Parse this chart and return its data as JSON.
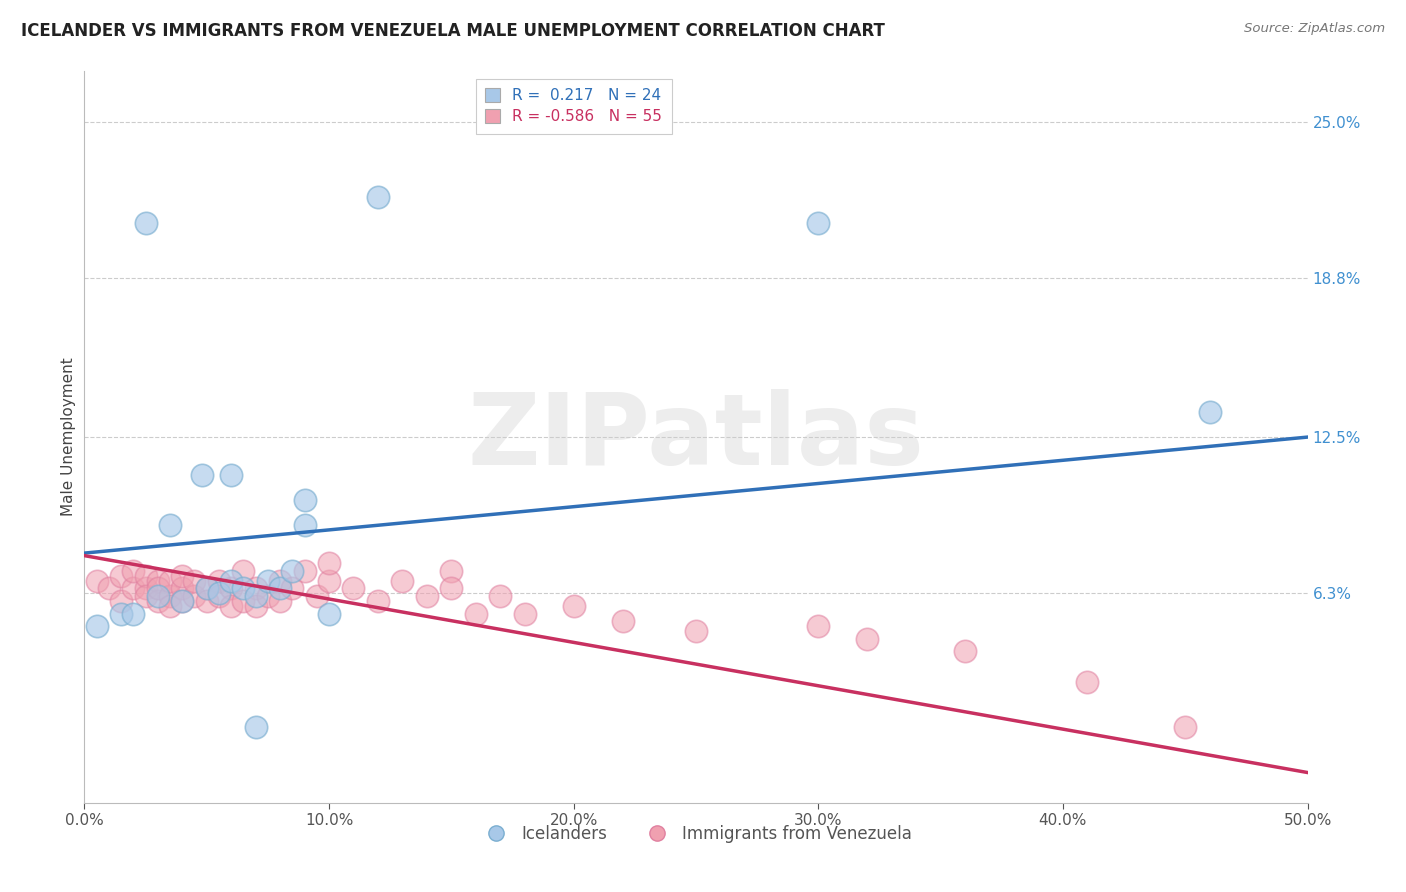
{
  "title": "ICELANDER VS IMMIGRANTS FROM VENEZUELA MALE UNEMPLOYMENT CORRELATION CHART",
  "source": "Source: ZipAtlas.com",
  "ylabel": "Male Unemployment",
  "legend_labels": [
    "Icelanders",
    "Immigrants from Venezuela"
  ],
  "r_blue": 0.217,
  "n_blue": 24,
  "r_pink": -0.586,
  "n_pink": 55,
  "color_blue_fill": "#a8c8e8",
  "color_blue_edge": "#7aaed0",
  "color_pink_fill": "#f0a0b0",
  "color_pink_edge": "#e080a0",
  "line_color_blue": "#3070b8",
  "line_color_pink": "#c83060",
  "ytick_color": "#4090d0",
  "xlim": [
    0.0,
    0.5
  ],
  "ylim": [
    -0.02,
    0.27
  ],
  "yticks": [
    0.063,
    0.125,
    0.188,
    0.25
  ],
  "ytick_labels": [
    "6.3%",
    "12.5%",
    "18.8%",
    "25.0%"
  ],
  "xticks": [
    0.0,
    0.1,
    0.2,
    0.3,
    0.4,
    0.5
  ],
  "xtick_labels": [
    "0.0%",
    "10.0%",
    "20.0%",
    "30.0%",
    "40.0%",
    "50.0%"
  ],
  "watermark": "ZIPatlas",
  "blue_line_x0": 0.0,
  "blue_line_y0": 0.079,
  "blue_line_x1": 0.5,
  "blue_line_y1": 0.125,
  "pink_line_x0": 0.0,
  "pink_line_y0": 0.078,
  "pink_line_x1": 0.5,
  "pink_line_y1": -0.008,
  "blue_x": [
    0.005,
    0.015,
    0.02,
    0.03,
    0.04,
    0.05,
    0.055,
    0.06,
    0.065,
    0.07,
    0.075,
    0.08,
    0.085,
    0.09,
    0.048,
    0.035,
    0.1,
    0.12,
    0.46,
    0.3,
    0.09,
    0.06,
    0.025,
    0.07
  ],
  "blue_y": [
    0.05,
    0.055,
    0.055,
    0.062,
    0.06,
    0.065,
    0.063,
    0.068,
    0.065,
    0.062,
    0.068,
    0.065,
    0.072,
    0.09,
    0.11,
    0.09,
    0.055,
    0.22,
    0.135,
    0.21,
    0.1,
    0.11,
    0.21,
    0.01
  ],
  "pink_x": [
    0.005,
    0.01,
    0.015,
    0.015,
    0.02,
    0.02,
    0.025,
    0.025,
    0.025,
    0.03,
    0.03,
    0.03,
    0.035,
    0.035,
    0.035,
    0.04,
    0.04,
    0.04,
    0.045,
    0.045,
    0.05,
    0.05,
    0.055,
    0.055,
    0.06,
    0.06,
    0.065,
    0.065,
    0.07,
    0.07,
    0.075,
    0.08,
    0.08,
    0.085,
    0.09,
    0.095,
    0.1,
    0.1,
    0.11,
    0.12,
    0.13,
    0.14,
    0.15,
    0.15,
    0.16,
    0.17,
    0.18,
    0.2,
    0.22,
    0.25,
    0.3,
    0.32,
    0.36,
    0.41,
    0.45
  ],
  "pink_y": [
    0.068,
    0.065,
    0.07,
    0.06,
    0.065,
    0.072,
    0.065,
    0.07,
    0.062,
    0.068,
    0.06,
    0.065,
    0.062,
    0.058,
    0.068,
    0.065,
    0.07,
    0.06,
    0.062,
    0.068,
    0.065,
    0.06,
    0.068,
    0.062,
    0.065,
    0.058,
    0.072,
    0.06,
    0.065,
    0.058,
    0.062,
    0.068,
    0.06,
    0.065,
    0.072,
    0.062,
    0.068,
    0.075,
    0.065,
    0.06,
    0.068,
    0.062,
    0.072,
    0.065,
    0.055,
    0.062,
    0.055,
    0.058,
    0.052,
    0.048,
    0.05,
    0.045,
    0.04,
    0.028,
    0.01
  ]
}
